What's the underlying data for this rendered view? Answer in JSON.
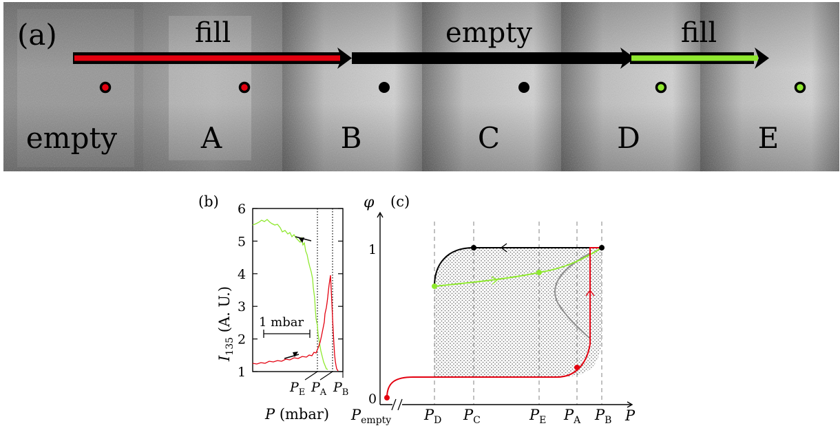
{
  "panel_a": {
    "label": "(a)",
    "arrows": [
      {
        "label": "fill",
        "color": "#e3000f"
      },
      {
        "label": "empty",
        "color": "#000000"
      },
      {
        "label": "fill",
        "color": "#8fe82f"
      }
    ],
    "frames": [
      {
        "label": "empty",
        "dot_color": "#e3000f"
      },
      {
        "label": "A",
        "dot_color": "#e3000f"
      },
      {
        "label": "B",
        "dot_color": "#000000"
      },
      {
        "label": "C",
        "dot_color": "#000000"
      },
      {
        "label": "D",
        "dot_color": "#8fe82f"
      },
      {
        "label": "E",
        "dot_color": "#8fe82f"
      }
    ]
  },
  "panel_b": {
    "label": "(b)",
    "ylabel_main": "I",
    "ylabel_sub": "135",
    "ylabel_rest": " (A. U.)",
    "xlabel_main": "P",
    "xlabel_rest": " (mbar)",
    "yticks": [
      "1",
      "2",
      "3",
      "4",
      "5",
      "6"
    ],
    "scale_bar": "1 mbar",
    "xticks": [
      {
        "main": "P",
        "sub": "E"
      },
      {
        "main": "P",
        "sub": "A"
      },
      {
        "main": "P",
        "sub": "B"
      }
    ]
  },
  "panel_c": {
    "label": "(c)",
    "ylabel": "φ",
    "xlabel": "P",
    "yticks": [
      "0",
      "1"
    ],
    "xticks": [
      {
        "main": "P",
        "sub": "empty"
      },
      {
        "main": "P",
        "sub": "D"
      },
      {
        "main": "P",
        "sub": "C"
      },
      {
        "main": "P",
        "sub": "E"
      },
      {
        "main": "P",
        "sub": "A"
      },
      {
        "main": "P",
        "sub": "B"
      }
    ]
  },
  "colors": {
    "red": "#e3000f",
    "green": "#8fe82f",
    "gray": "#8c8c8c",
    "black": "#000000"
  }
}
